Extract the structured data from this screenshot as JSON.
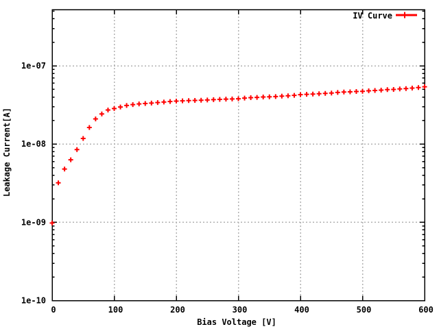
{
  "colors": {
    "marker": "#ff0000",
    "grid": "#b0b0b0",
    "axis": "#000000",
    "background": "#ffffff"
  },
  "chart_data": {
    "type": "scatter",
    "title": "",
    "xlabel": "Bias Voltage [V]",
    "ylabel": "Leakage Current[A]",
    "legend_label": "IV Curve",
    "legend_position": "top-right-inside",
    "marker": "plus",
    "grid": true,
    "y_scale": "log",
    "xlim": [
      0,
      600
    ],
    "ylim": [
      1e-10,
      5.3e-07
    ],
    "xticks": [
      0,
      100,
      200,
      300,
      400,
      500,
      600
    ],
    "xtick_labels": [
      "0",
      "100",
      "200",
      "300",
      "400",
      "500",
      "600"
    ],
    "ytick_values": [
      1e-10,
      1e-09,
      1e-08,
      1e-07
    ],
    "ytick_labels": [
      "1e-10",
      "1e-09",
      "1e-08",
      "1e-07"
    ],
    "x": [
      0,
      10,
      20,
      30,
      40,
      50,
      60,
      70,
      80,
      90,
      100,
      110,
      120,
      130,
      140,
      150,
      160,
      170,
      180,
      190,
      200,
      210,
      220,
      230,
      240,
      250,
      260,
      270,
      280,
      290,
      300,
      310,
      320,
      330,
      340,
      350,
      360,
      370,
      380,
      390,
      400,
      410,
      420,
      430,
      440,
      450,
      460,
      470,
      480,
      490,
      500,
      510,
      520,
      530,
      540,
      550,
      560,
      570,
      580,
      590,
      600
    ],
    "series": [
      {
        "name": "IV Curve",
        "values": [
          9.8e-10,
          3.2e-09,
          4.8e-09,
          6.3e-09,
          8.5e-09,
          1.18e-08,
          1.63e-08,
          2.1e-08,
          2.43e-08,
          2.73e-08,
          2.85e-08,
          2.98e-08,
          3.12e-08,
          3.2e-08,
          3.26e-08,
          3.3e-08,
          3.35e-08,
          3.4e-08,
          3.45e-08,
          3.5e-08,
          3.55e-08,
          3.57e-08,
          3.6e-08,
          3.62e-08,
          3.64e-08,
          3.66e-08,
          3.7e-08,
          3.73e-08,
          3.76e-08,
          3.78e-08,
          3.8e-08,
          3.87e-08,
          3.92e-08,
          3.95e-08,
          4e-08,
          4.02e-08,
          4.05e-08,
          4.1e-08,
          4.15e-08,
          4.2e-08,
          4.28e-08,
          4.33e-08,
          4.36e-08,
          4.4e-08,
          4.45e-08,
          4.5e-08,
          4.57e-08,
          4.63e-08,
          4.66e-08,
          4.7e-08,
          4.73e-08,
          4.8e-08,
          4.85e-08,
          4.9e-08,
          4.97e-08,
          5e-08,
          5.07e-08,
          5.13e-08,
          5.2e-08,
          5.28e-08,
          5.4e-08
        ]
      }
    ]
  }
}
